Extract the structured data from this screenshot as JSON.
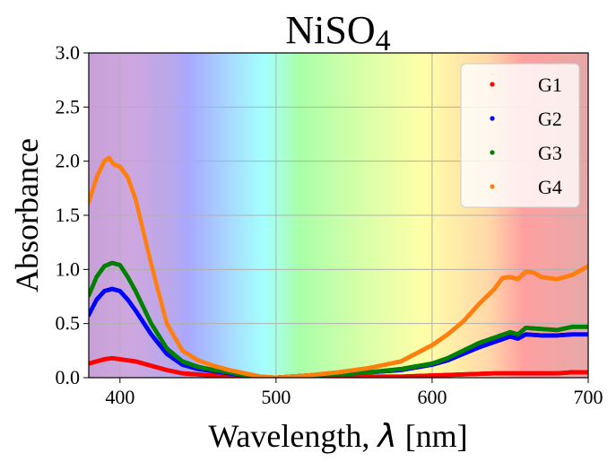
{
  "chart_data": {
    "type": "scatter",
    "title_main": "NiSO",
    "title_sub": "4",
    "xlabel_main": "Wavelength, ",
    "xlabel_symbol": "λ",
    "xlabel_unit": " [nm]",
    "ylabel": "Absorbance",
    "xlim": [
      380,
      700
    ],
    "ylim": [
      0,
      3.0
    ],
    "xticks": [
      400,
      500,
      600,
      700
    ],
    "xtick_labels": [
      "400",
      "500",
      "600",
      "700"
    ],
    "yticks": [
      0,
      0.5,
      1.0,
      1.5,
      2.0,
      2.5,
      3.0
    ],
    "ytick_labels": [
      "0.0",
      "0.5",
      "1.0",
      "1.5",
      "2.0",
      "2.5",
      "3.0"
    ],
    "grid": true,
    "legend_position": "top-right",
    "background": "visible-spectrum",
    "series": [
      {
        "name": "G1",
        "color": "#ff0000",
        "x": [
          380,
          390,
          395,
          400,
          410,
          420,
          430,
          440,
          450,
          460,
          470,
          480,
          490,
          500,
          520,
          550,
          580,
          600,
          620,
          640,
          660,
          680,
          690,
          700
        ],
        "y": [
          0.13,
          0.17,
          0.18,
          0.17,
          0.15,
          0.11,
          0.07,
          0.04,
          0.03,
          0.02,
          0.01,
          0.005,
          0.0,
          0.0,
          0.01,
          0.01,
          0.01,
          0.02,
          0.03,
          0.04,
          0.04,
          0.04,
          0.05,
          0.05
        ]
      },
      {
        "name": "G2",
        "color": "#0000ff",
        "x": [
          380,
          385,
          390,
          395,
          400,
          405,
          410,
          420,
          430,
          440,
          450,
          460,
          470,
          480,
          490,
          500,
          520,
          540,
          560,
          580,
          600,
          610,
          620,
          630,
          640,
          650,
          655,
          660,
          670,
          680,
          690,
          700
        ],
        "y": [
          0.58,
          0.72,
          0.8,
          0.82,
          0.8,
          0.72,
          0.62,
          0.4,
          0.22,
          0.12,
          0.08,
          0.06,
          0.04,
          0.02,
          0.0,
          0.0,
          0.02,
          0.03,
          0.05,
          0.07,
          0.12,
          0.16,
          0.22,
          0.28,
          0.33,
          0.38,
          0.36,
          0.4,
          0.39,
          0.39,
          0.4,
          0.4
        ]
      },
      {
        "name": "G3",
        "color": "#008000",
        "x": [
          380,
          385,
          390,
          395,
          400,
          405,
          410,
          420,
          430,
          440,
          450,
          460,
          470,
          480,
          490,
          500,
          520,
          540,
          560,
          580,
          600,
          610,
          620,
          630,
          640,
          650,
          655,
          660,
          670,
          680,
          690,
          700
        ],
        "y": [
          0.76,
          0.93,
          1.03,
          1.06,
          1.04,
          0.93,
          0.8,
          0.5,
          0.27,
          0.15,
          0.1,
          0.07,
          0.05,
          0.02,
          0.0,
          0.0,
          0.02,
          0.03,
          0.05,
          0.08,
          0.13,
          0.18,
          0.25,
          0.32,
          0.37,
          0.42,
          0.4,
          0.46,
          0.45,
          0.44,
          0.47,
          0.47
        ]
      },
      {
        "name": "G4",
        "color": "#ff7f0e",
        "x": [
          380,
          385,
          390,
          393,
          396,
          400,
          405,
          410,
          420,
          430,
          440,
          450,
          460,
          470,
          480,
          490,
          500,
          520,
          540,
          560,
          580,
          600,
          610,
          620,
          630,
          640,
          645,
          650,
          655,
          660,
          665,
          670,
          680,
          690,
          700
        ],
        "y": [
          1.62,
          1.85,
          2.0,
          2.03,
          1.97,
          1.95,
          1.85,
          1.65,
          1.05,
          0.5,
          0.25,
          0.16,
          0.11,
          0.07,
          0.04,
          0.01,
          0.0,
          0.02,
          0.05,
          0.09,
          0.15,
          0.3,
          0.4,
          0.52,
          0.68,
          0.82,
          0.92,
          0.93,
          0.91,
          0.98,
          0.97,
          0.93,
          0.91,
          0.95,
          1.03
        ]
      }
    ]
  }
}
